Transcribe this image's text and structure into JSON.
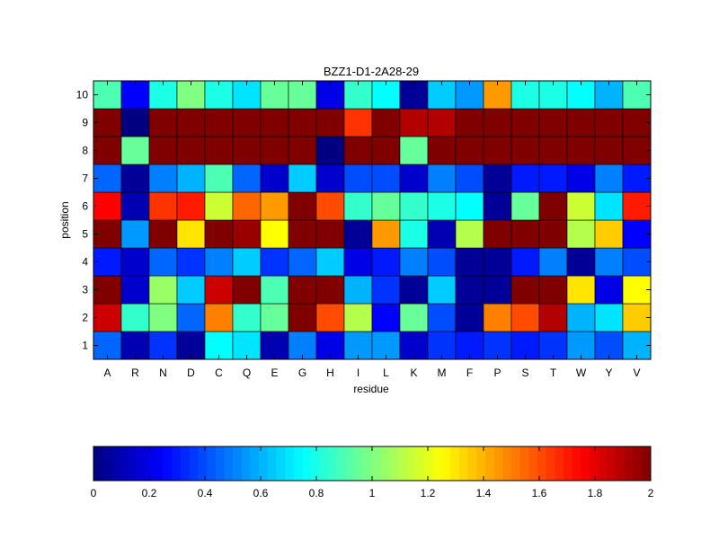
{
  "chart_data": {
    "type": "heatmap",
    "title": "BZZ1-D1-2A28-29",
    "xlabel": "residue",
    "ylabel": "position",
    "x_categories": [
      "A",
      "R",
      "N",
      "D",
      "C",
      "Q",
      "E",
      "G",
      "H",
      "I",
      "L",
      "K",
      "M",
      "F",
      "P",
      "S",
      "T",
      "W",
      "Y",
      "V"
    ],
    "y_categories": [
      "1",
      "2",
      "3",
      "4",
      "5",
      "6",
      "7",
      "8",
      "9",
      "10"
    ],
    "colormap": "jet",
    "clim": [
      0,
      2
    ],
    "colorbar": {
      "placement": "bottom",
      "ticks": [
        0,
        0.2,
        0.4,
        0.6,
        0.8,
        1,
        1.2,
        1.4,
        1.6,
        1.8,
        2
      ],
      "tick_labels": [
        "0",
        "0.2",
        "0.4",
        "0.6",
        "0.8",
        "1",
        "1.2",
        "1.4",
        "1.6",
        "1.8",
        "2"
      ]
    },
    "values": [
      [
        0.45,
        0.1,
        0.35,
        0.05,
        0.75,
        0.7,
        0.1,
        0.5,
        0.2,
        0.55,
        0.55,
        0.15,
        0.35,
        0.3,
        0.35,
        0.3,
        0.35,
        0.55,
        0.4,
        0.6
      ],
      [
        1.85,
        0.85,
        1.0,
        0.45,
        1.5,
        0.85,
        0.95,
        2.0,
        1.6,
        1.1,
        0.25,
        0.95,
        0.4,
        0.05,
        1.5,
        1.6,
        1.9,
        0.6,
        0.7,
        1.35
      ],
      [
        2.0,
        0.15,
        1.05,
        0.65,
        1.85,
        2.0,
        0.9,
        2.0,
        2.0,
        0.6,
        0.35,
        0.05,
        0.65,
        0.05,
        0.05,
        2.0,
        2.0,
        1.3,
        0.2,
        1.25
      ],
      [
        0.3,
        0.15,
        0.45,
        0.35,
        0.5,
        0.65,
        0.35,
        0.45,
        0.65,
        0.2,
        0.3,
        0.5,
        0.4,
        0.05,
        0.05,
        0.3,
        0.5,
        0.05,
        0.5,
        0.4
      ],
      [
        2.0,
        0.55,
        2.0,
        1.3,
        2.0,
        1.95,
        1.25,
        2.0,
        2.0,
        0.05,
        1.45,
        0.8,
        0.1,
        1.1,
        2.0,
        2.0,
        2.0,
        1.1,
        1.35,
        0.25
      ],
      [
        1.75,
        0.1,
        1.65,
        1.7,
        1.15,
        1.55,
        1.45,
        2.0,
        1.6,
        0.85,
        0.95,
        0.85,
        0.8,
        0.75,
        0.05,
        0.95,
        2.0,
        1.15,
        0.7,
        1.7
      ],
      [
        0.45,
        0.05,
        0.5,
        0.6,
        0.9,
        0.45,
        0.15,
        0.65,
        0.15,
        0.4,
        0.4,
        0.15,
        0.5,
        0.4,
        0.05,
        0.3,
        0.3,
        0.2,
        0.5,
        0.3
      ],
      [
        2.0,
        0.95,
        2.0,
        2.0,
        2.0,
        2.0,
        2.0,
        2.0,
        0.0,
        2.0,
        2.0,
        0.95,
        2.0,
        2.0,
        2.0,
        2.0,
        2.0,
        2.0,
        2.0,
        2.0
      ],
      [
        2.0,
        0.0,
        2.0,
        2.0,
        2.0,
        2.0,
        2.0,
        2.0,
        2.0,
        1.65,
        2.0,
        1.9,
        1.9,
        2.0,
        2.0,
        2.0,
        2.0,
        2.0,
        2.0,
        2.0
      ],
      [
        0.9,
        0.25,
        0.8,
        1.0,
        0.8,
        0.7,
        0.95,
        0.95,
        0.2,
        0.85,
        0.75,
        0.05,
        0.65,
        0.55,
        1.45,
        0.8,
        0.8,
        0.75,
        0.6,
        0.9
      ]
    ]
  }
}
